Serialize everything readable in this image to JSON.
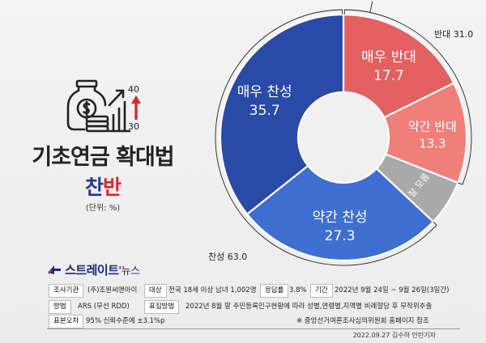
{
  "chart_data": {
    "type": "donut",
    "title": "기초연금 확대법",
    "subtitle_parts": [
      "찬",
      "반"
    ],
    "unit": "(단위: %)",
    "slices": [
      {
        "label": "매우 반대",
        "value": 17.7,
        "color": "#e46060"
      },
      {
        "label": "약간 반대",
        "value": 13.3,
        "color": "#f07f7a"
      },
      {
        "label": "잘 모름",
        "value": 6.0,
        "color": "#a9a9a9"
      },
      {
        "label": "약간 찬성",
        "value": 27.3,
        "color": "#3f6ed1"
      },
      {
        "label": "매우 찬성",
        "value": 35.7,
        "color": "#2a4aa8"
      }
    ],
    "group_totals": [
      {
        "label": "반대 31.0",
        "value": 31.0
      },
      {
        "label": "찬성 63.0",
        "value": 63.0
      }
    ]
  },
  "icon": {
    "upper": "40",
    "lower": "30"
  },
  "brand": {
    "name_main": "스트레이트",
    "name_sub": "뉴스"
  },
  "info": {
    "surveyor_label": "조사기관",
    "surveyor": "(주)조원씨앤아이",
    "target_label": "대상",
    "target": "전국 18세 이상 남녀 1,002명",
    "rate_label": "응답률",
    "rate": "3.8%",
    "period_label": "기간",
    "period": "2022년 9월 24일 ~ 9월 26일(3일간)",
    "method_label": "방법",
    "method": "ARS (무선 RDD)",
    "sampling_label": "표집방법",
    "sampling": "2022년 8월 말 주민등록인구현황에 따라 성별,연령별,지역별 비례할당 후 무작위추출",
    "error_label": "표본오차",
    "error": "95% 신뢰수준에 ±3.1%p",
    "note": "※ 중앙선거여론조사심의위원회 홈페이지 참조"
  },
  "footer": "2022.09.27 김수하 인턴기자"
}
